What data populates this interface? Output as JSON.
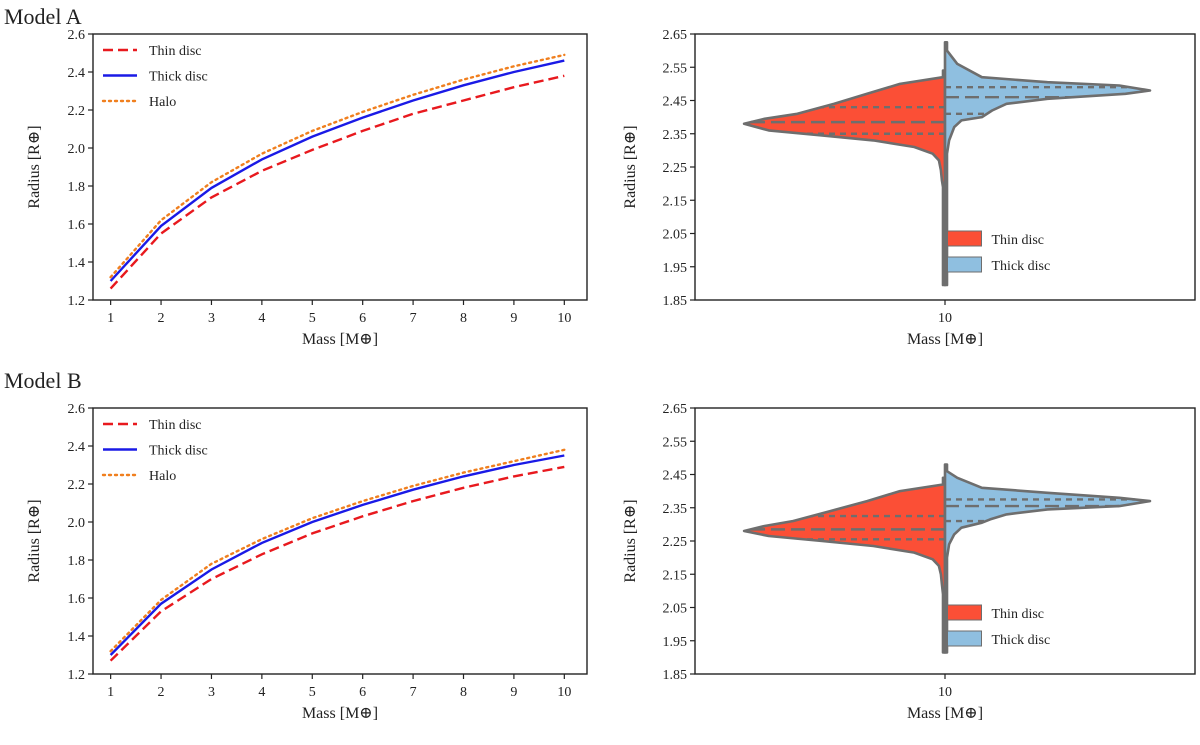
{
  "models": [
    {
      "title": "Model A",
      "line_chart": {
        "type": "line",
        "xlabel": "Mass [M⊕]",
        "ylabel": "Radius [R⊕]",
        "x": [
          1,
          2,
          3,
          4,
          5,
          6,
          7,
          8,
          9,
          10
        ],
        "xlim": [
          0.65,
          10.45
        ],
        "ylim": [
          1.2,
          2.6
        ],
        "yticks": [
          "1.2",
          "1.4",
          "1.6",
          "1.8",
          "2.0",
          "2.2",
          "2.4",
          "2.6"
        ],
        "xticks": [
          "1",
          "2",
          "3",
          "4",
          "5",
          "6",
          "7",
          "8",
          "9",
          "10"
        ],
        "legend_position": "top-left",
        "series": [
          {
            "name": "Thin disc",
            "style": "dashed",
            "color": "#e8191e",
            "values": [
              1.26,
              1.55,
              1.74,
              1.88,
              1.99,
              2.09,
              2.18,
              2.25,
              2.32,
              2.38
            ]
          },
          {
            "name": "Thick disc",
            "style": "solid",
            "color": "#1a1ae6",
            "values": [
              1.3,
              1.59,
              1.79,
              1.94,
              2.06,
              2.16,
              2.25,
              2.33,
              2.4,
              2.46
            ]
          },
          {
            "name": "Halo",
            "style": "dotted",
            "color": "#f07f1e",
            "values": [
              1.32,
              1.62,
              1.82,
              1.97,
              2.09,
              2.19,
              2.28,
              2.36,
              2.43,
              2.49
            ]
          }
        ]
      },
      "violin_chart": {
        "type": "violin",
        "xlabel": "Mass [M⊕]",
        "ylabel": "Radius [R⊕]",
        "category": "10",
        "ylim": [
          1.85,
          2.65
        ],
        "yticks": [
          "1.85",
          "1.95",
          "2.05",
          "2.15",
          "2.25",
          "2.35",
          "2.45",
          "2.55",
          "2.65"
        ],
        "legend_position": "lower-right",
        "legend": [
          {
            "name": "Thin disc",
            "color": "#fb4f36"
          },
          {
            "name": "Thick disc",
            "color": "#8fbfe0"
          }
        ],
        "thin_disc": {
          "quartiles": [
            2.35,
            2.385,
            2.43
          ],
          "profile": [
            [
              2.54,
              0.0
            ],
            [
              2.52,
              0.005
            ],
            [
              2.5,
              0.22
            ],
            [
              2.47,
              0.38
            ],
            [
              2.44,
              0.54
            ],
            [
              2.41,
              0.72
            ],
            [
              2.395,
              0.88
            ],
            [
              2.38,
              0.98
            ],
            [
              2.36,
              0.86
            ],
            [
              2.345,
              0.6
            ],
            [
              2.33,
              0.35
            ],
            [
              2.31,
              0.15
            ],
            [
              2.29,
              0.06
            ],
            [
              2.27,
              0.03
            ],
            [
              2.24,
              0.02
            ],
            [
              2.21,
              0.015
            ],
            [
              2.19,
              0.008
            ],
            [
              2.17,
              0.004
            ],
            [
              2.12,
              0.003
            ],
            [
              2.07,
              0.003
            ],
            [
              2.02,
              0.003
            ],
            [
              1.97,
              0.002
            ],
            [
              1.92,
              0.002
            ],
            [
              1.895,
              0.0
            ]
          ]
        },
        "thick_disc": {
          "quartiles": [
            2.41,
            2.46,
            2.49
          ],
          "profile": [
            [
              2.625,
              0.0
            ],
            [
              2.6,
              0.01
            ],
            [
              2.56,
              0.06
            ],
            [
              2.52,
              0.18
            ],
            [
              2.505,
              0.5
            ],
            [
              2.495,
              0.85
            ],
            [
              2.48,
              1.0
            ],
            [
              2.47,
              0.88
            ],
            [
              2.455,
              0.5
            ],
            [
              2.44,
              0.3
            ],
            [
              2.42,
              0.23
            ],
            [
              2.4,
              0.18
            ],
            [
              2.39,
              0.08
            ],
            [
              2.37,
              0.045
            ],
            [
              2.33,
              0.02
            ],
            [
              2.29,
              0.01
            ],
            [
              2.25,
              0.006
            ],
            [
              2.2,
              0.004
            ],
            [
              2.12,
              0.003
            ],
            [
              2.07,
              0.003
            ],
            [
              2.02,
              0.003
            ],
            [
              1.97,
              0.002
            ],
            [
              1.92,
              0.002
            ],
            [
              1.895,
              0.0
            ]
          ]
        }
      }
    },
    {
      "title": "Model B",
      "line_chart": {
        "type": "line",
        "xlabel": "Mass [M⊕]",
        "ylabel": "Radius [R⊕]",
        "x": [
          1,
          2,
          3,
          4,
          5,
          6,
          7,
          8,
          9,
          10
        ],
        "xlim": [
          0.65,
          10.45
        ],
        "ylim": [
          1.2,
          2.6
        ],
        "yticks": [
          "1.2",
          "1.4",
          "1.6",
          "1.8",
          "2.0",
          "2.2",
          "2.4",
          "2.6"
        ],
        "xticks": [
          "1",
          "2",
          "3",
          "4",
          "5",
          "6",
          "7",
          "8",
          "9",
          "10"
        ],
        "legend_position": "top-left",
        "series": [
          {
            "name": "Thin disc",
            "style": "dashed",
            "color": "#e8191e",
            "values": [
              1.27,
              1.53,
              1.7,
              1.83,
              1.94,
              2.03,
              2.11,
              2.18,
              2.24,
              2.29
            ]
          },
          {
            "name": "Thick disc",
            "style": "solid",
            "color": "#1a1ae6",
            "values": [
              1.3,
              1.57,
              1.75,
              1.89,
              2.0,
              2.09,
              2.17,
              2.24,
              2.3,
              2.35
            ]
          },
          {
            "name": "Halo",
            "style": "dotted",
            "color": "#f07f1e",
            "values": [
              1.32,
              1.59,
              1.78,
              1.91,
              2.02,
              2.11,
              2.19,
              2.26,
              2.32,
              2.38
            ]
          }
        ]
      },
      "violin_chart": {
        "type": "violin",
        "xlabel": "Mass [M⊕]",
        "ylabel": "Radius [R⊕]",
        "category": "10",
        "ylim": [
          1.85,
          2.65
        ],
        "yticks": [
          "1.85",
          "1.95",
          "2.05",
          "2.15",
          "2.25",
          "2.35",
          "2.45",
          "2.55",
          "2.65"
        ],
        "legend_position": "lower-right",
        "legend": [
          {
            "name": "Thin disc",
            "color": "#fb4f36"
          },
          {
            "name": "Thick disc",
            "color": "#8fbfe0"
          }
        ],
        "thin_disc": {
          "quartiles": [
            2.255,
            2.285,
            2.325
          ],
          "profile": [
            [
              2.44,
              0.0
            ],
            [
              2.42,
              0.005
            ],
            [
              2.4,
              0.22
            ],
            [
              2.37,
              0.38
            ],
            [
              2.34,
              0.56
            ],
            [
              2.31,
              0.74
            ],
            [
              2.295,
              0.88
            ],
            [
              2.28,
              0.98
            ],
            [
              2.265,
              0.86
            ],
            [
              2.25,
              0.6
            ],
            [
              2.235,
              0.35
            ],
            [
              2.215,
              0.15
            ],
            [
              2.195,
              0.06
            ],
            [
              2.175,
              0.03
            ],
            [
              2.15,
              0.02
            ],
            [
              2.12,
              0.015
            ],
            [
              2.09,
              0.006
            ],
            [
              2.07,
              0.004
            ],
            [
              2.02,
              0.003
            ],
            [
              1.97,
              0.003
            ],
            [
              1.94,
              0.002
            ],
            [
              1.915,
              0.0
            ]
          ]
        },
        "thick_disc": {
          "quartiles": [
            2.31,
            2.355,
            2.375
          ],
          "profile": [
            [
              2.48,
              0.0
            ],
            [
              2.46,
              0.01
            ],
            [
              2.44,
              0.06
            ],
            [
              2.41,
              0.18
            ],
            [
              2.395,
              0.5
            ],
            [
              2.38,
              0.85
            ],
            [
              2.37,
              1.0
            ],
            [
              2.355,
              0.85
            ],
            [
              2.345,
              0.5
            ],
            [
              2.33,
              0.3
            ],
            [
              2.315,
              0.22
            ],
            [
              2.305,
              0.18
            ],
            [
              2.29,
              0.08
            ],
            [
              2.27,
              0.045
            ],
            [
              2.24,
              0.02
            ],
            [
              2.2,
              0.01
            ],
            [
              2.16,
              0.006
            ],
            [
              2.12,
              0.004
            ],
            [
              2.07,
              0.003
            ],
            [
              2.02,
              0.003
            ],
            [
              1.97,
              0.002
            ],
            [
              1.94,
              0.002
            ],
            [
              1.915,
              0.0
            ]
          ]
        }
      }
    }
  ]
}
